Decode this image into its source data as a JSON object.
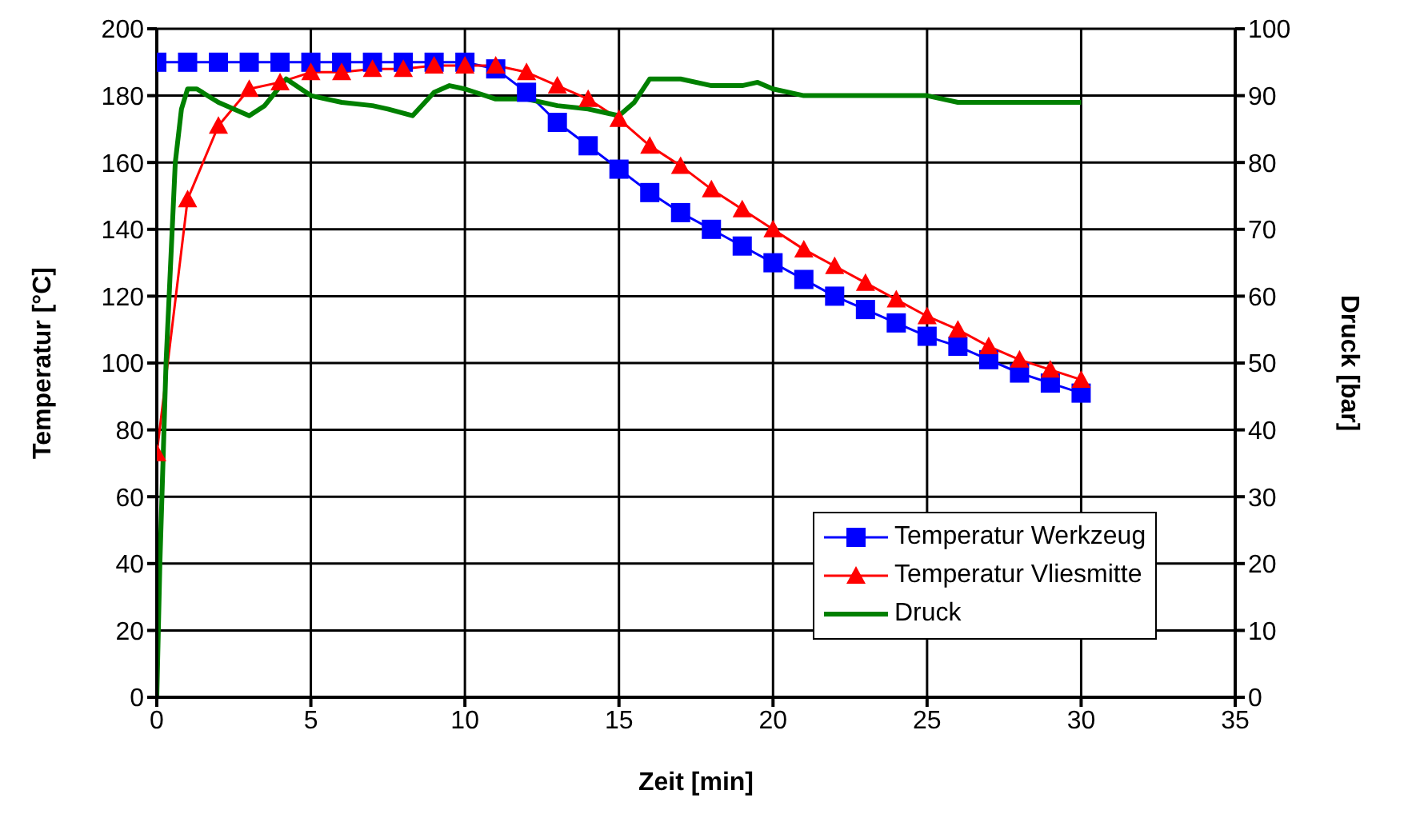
{
  "chart_data": {
    "type": "line",
    "xlabel": "Zeit [min]",
    "ylabel": "Temperatur [°C]",
    "y2label": "Druck [bar]",
    "xlim": [
      0,
      35
    ],
    "xticks": [
      0,
      5,
      10,
      15,
      20,
      25,
      30,
      35
    ],
    "ylim": [
      0,
      200
    ],
    "yticks": [
      0,
      20,
      40,
      60,
      80,
      100,
      120,
      140,
      160,
      180,
      200
    ],
    "y2lim": [
      0,
      100
    ],
    "y2ticks": [
      0,
      10,
      20,
      30,
      40,
      50,
      60,
      70,
      80,
      90,
      100
    ],
    "grid": true,
    "legend": "bottom right",
    "series": [
      {
        "name": "Temperatur Werkzeug",
        "color": "#0000ff",
        "marker": "square",
        "x": [
          0,
          1,
          2,
          3,
          4,
          5,
          6,
          7,
          8,
          9,
          10,
          11,
          12,
          13,
          14,
          15,
          16,
          17,
          18,
          19,
          20,
          21,
          22,
          23,
          24,
          25,
          26,
          27,
          28,
          29,
          30
        ],
        "values": [
          190,
          190,
          190,
          190,
          190,
          190,
          190,
          190,
          190,
          190,
          190,
          188,
          181,
          172,
          165,
          158,
          151,
          145,
          140,
          135,
          130,
          125,
          120,
          116,
          112,
          108,
          105,
          101,
          97,
          94,
          91
        ]
      },
      {
        "name": "Temperatur Vliesmitte",
        "color": "#ff0000",
        "marker": "triangle",
        "x": [
          0,
          1,
          2,
          3,
          4,
          5,
          6,
          7,
          8,
          9,
          10,
          11,
          12,
          13,
          14,
          15,
          16,
          17,
          18,
          19,
          20,
          21,
          22,
          23,
          24,
          25,
          26,
          27,
          28,
          29,
          30
        ],
        "values": [
          73,
          149,
          171,
          182,
          184,
          187,
          187,
          188,
          188,
          189,
          189,
          189,
          187,
          183,
          179,
          173,
          165,
          159,
          152,
          146,
          140,
          134,
          129,
          124,
          119,
          114,
          110,
          105,
          101,
          98,
          95
        ]
      },
      {
        "name": "Druck",
        "color": "#008000",
        "marker": "none",
        "axis": "y2",
        "x": [
          0,
          0.1,
          0.3,
          0.6,
          0.8,
          1,
          1.3,
          2,
          3,
          3.5,
          4.2,
          5,
          6,
          7,
          7.5,
          8.3,
          9,
          9.5,
          10,
          11,
          12,
          13,
          14,
          15,
          15.5,
          16,
          17,
          18,
          19,
          19.5,
          20,
          21,
          22,
          25,
          26,
          30
        ],
        "values": [
          0,
          20,
          50,
          80,
          88,
          91,
          91,
          89,
          87,
          88.5,
          92.5,
          90,
          89,
          88.5,
          88,
          87,
          90.5,
          91.5,
          91,
          89.5,
          89.5,
          88.5,
          88,
          87,
          89,
          92.5,
          92.5,
          91.5,
          91.5,
          92,
          91,
          90,
          90,
          90,
          89,
          89
        ]
      }
    ]
  }
}
